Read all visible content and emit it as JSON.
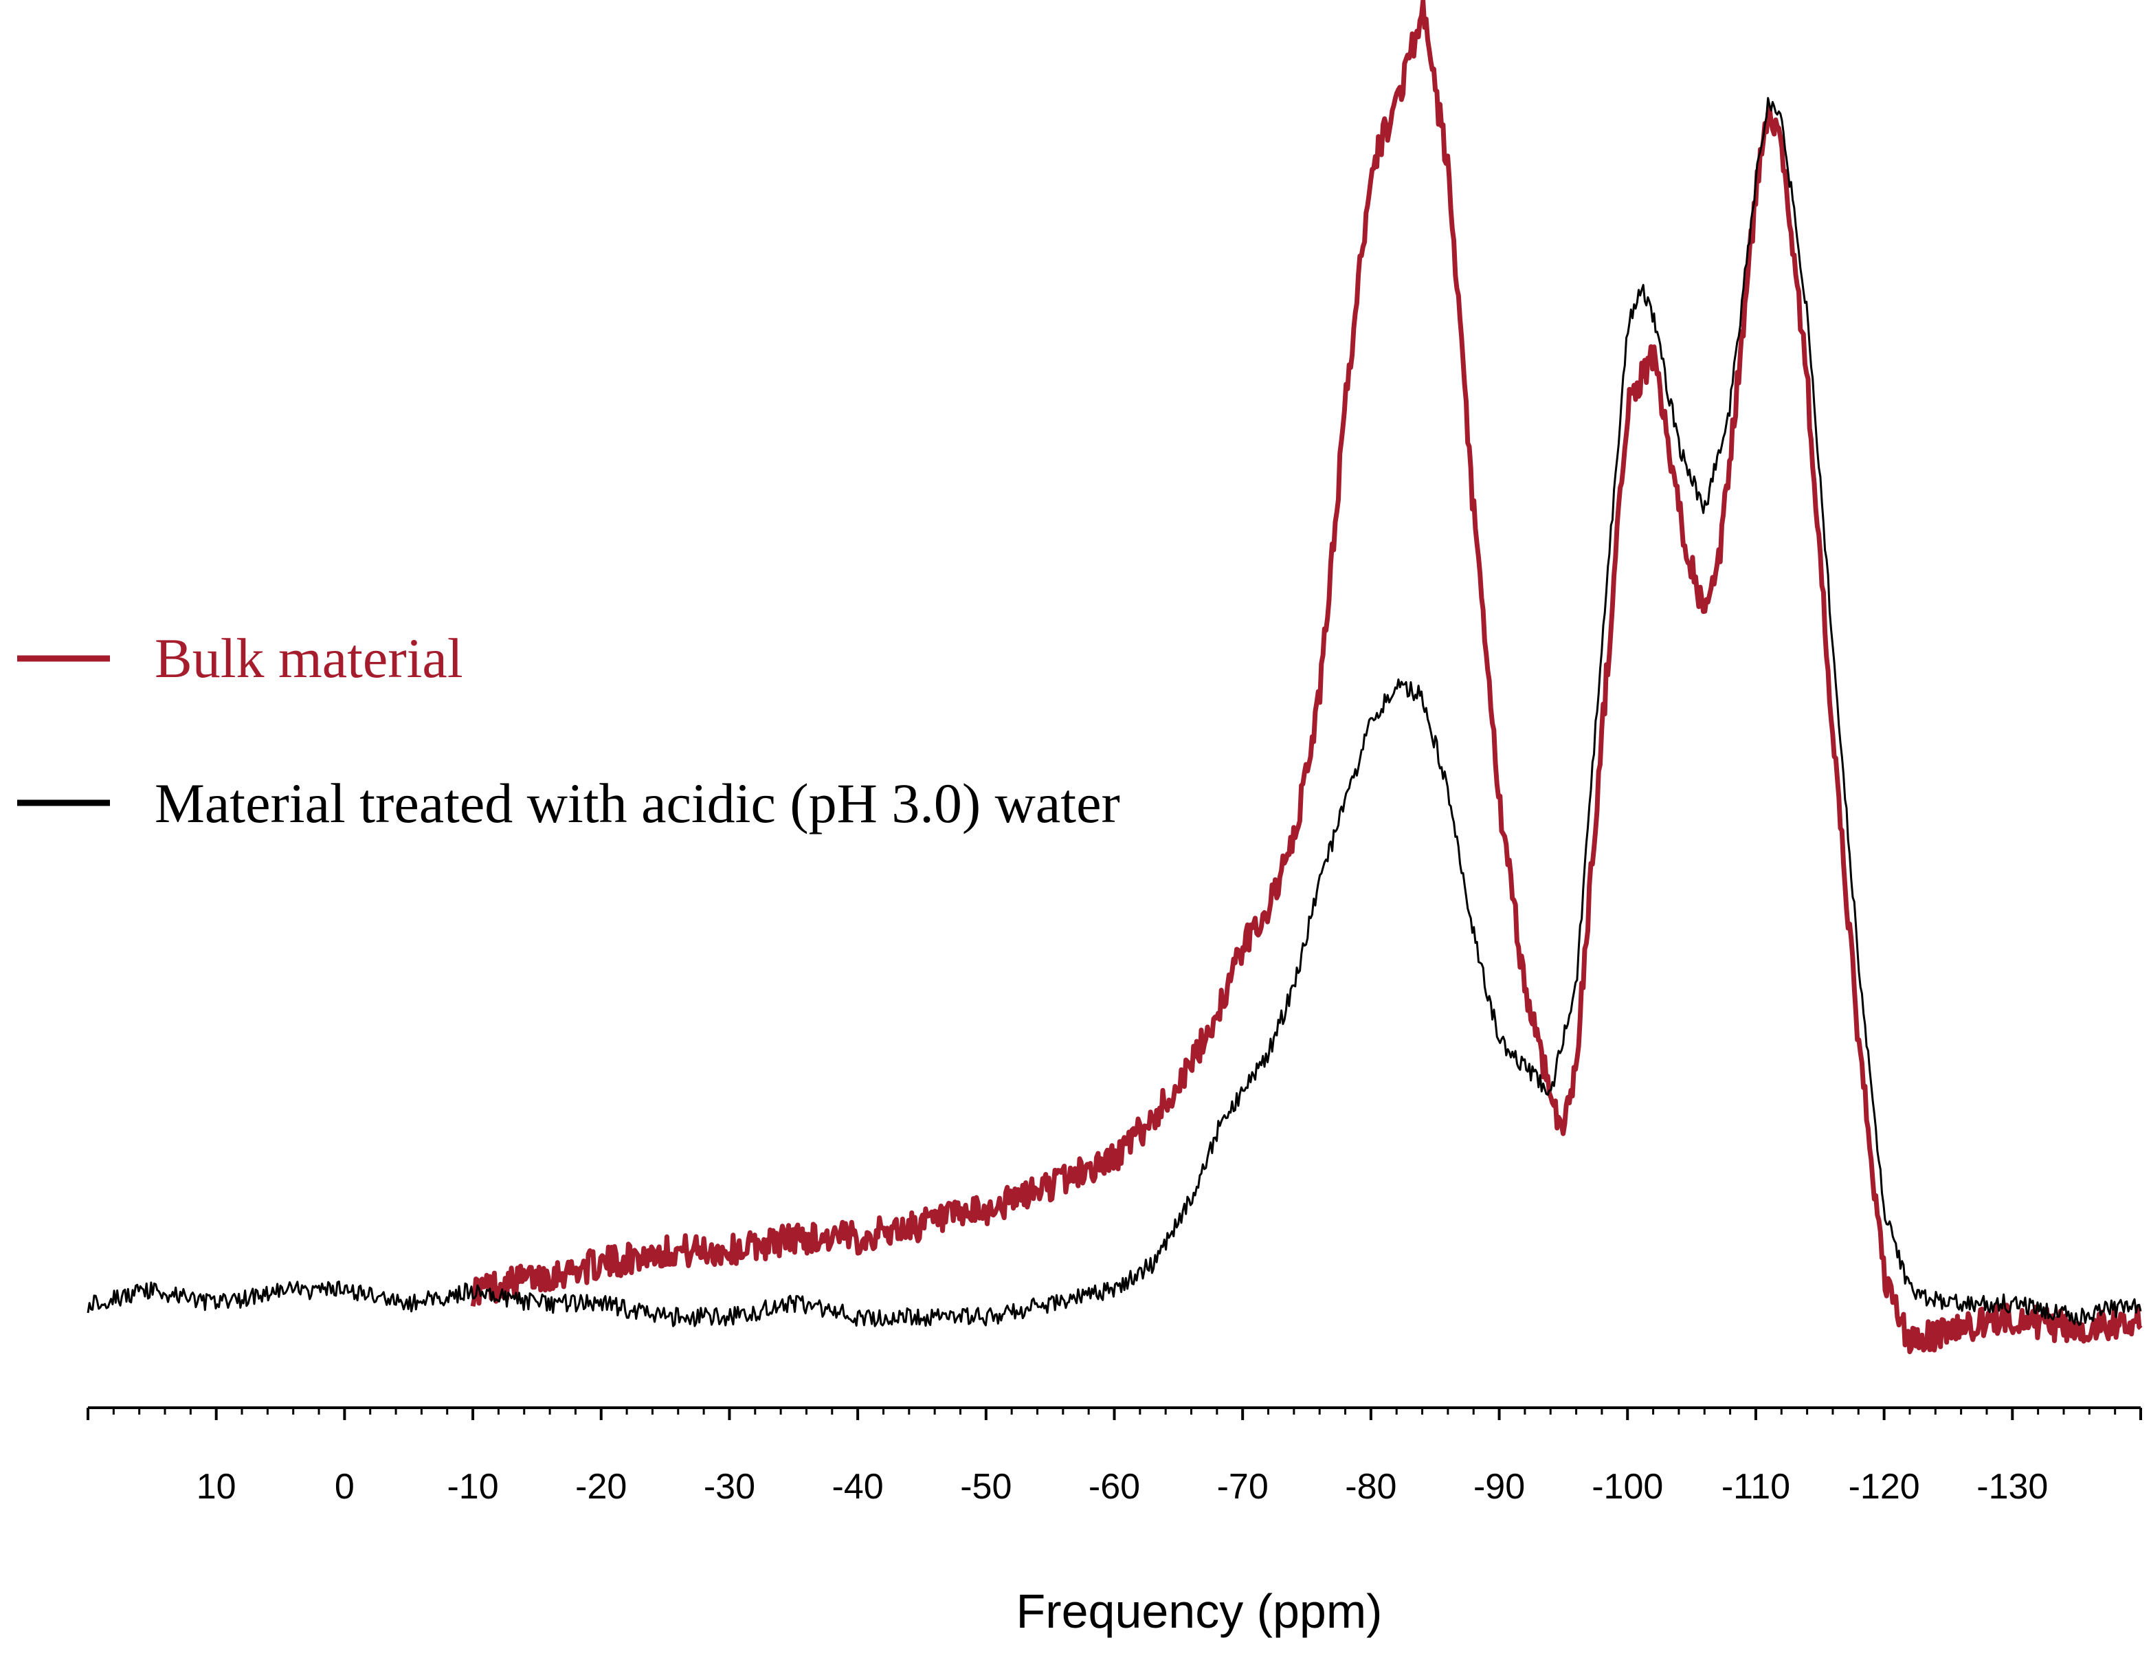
{
  "chart_data": {
    "type": "line",
    "title": "",
    "xlabel": "Frequency (ppm)",
    "ylabel": "",
    "x_reversed": true,
    "xlim": [
      20,
      -140
    ],
    "ylim": [
      0,
      1.0
    ],
    "x_ticks": [
      10,
      0,
      -10,
      -20,
      -30,
      -40,
      -50,
      -60,
      -70,
      -80,
      -90,
      -100,
      -110,
      -120,
      -130
    ],
    "grid": false,
    "legend_position": "left-middle",
    "series": [
      {
        "name": "Bulk material",
        "color": "#a51d2d",
        "x": [
          -10,
          -15,
          -20,
          -25,
          -30,
          -35,
          -40,
          -45,
          -50,
          -55,
          -60,
          -63,
          -66,
          -68,
          -70,
          -72,
          -74,
          -76,
          -78,
          -80,
          -82,
          -84,
          -86,
          -88,
          -90,
          -92,
          -94,
          -95,
          -96,
          -98,
          -100,
          -102,
          -104,
          -106,
          -107,
          -108,
          -110,
          -111,
          -112,
          -114,
          -116,
          -118,
          -120,
          -122,
          -125,
          -130,
          -135,
          -140
        ],
        "y": [
          0.03,
          0.04,
          0.05,
          0.06,
          0.06,
          0.07,
          0.07,
          0.08,
          0.09,
          0.11,
          0.13,
          0.16,
          0.2,
          0.24,
          0.29,
          0.32,
          0.37,
          0.48,
          0.7,
          0.88,
          0.93,
          1.0,
          0.88,
          0.62,
          0.4,
          0.26,
          0.18,
          0.15,
          0.2,
          0.45,
          0.7,
          0.74,
          0.62,
          0.54,
          0.57,
          0.66,
          0.86,
          0.93,
          0.9,
          0.72,
          0.45,
          0.22,
          0.04,
          -0.01,
          0.0,
          0.01,
          0.0,
          0.01
        ]
      },
      {
        "name": "Material treated with acidic (pH 3.0) water",
        "color": "#000000",
        "x": [
          20,
          15,
          10,
          5,
          0,
          -5,
          -10,
          -15,
          -20,
          -25,
          -30,
          -35,
          -40,
          -45,
          -50,
          -55,
          -60,
          -63,
          -66,
          -68,
          -70,
          -72,
          -74,
          -76,
          -78,
          -80,
          -82,
          -84,
          -86,
          -88,
          -90,
          -92,
          -94,
          -96,
          -98,
          -100,
          -101,
          -102,
          -104,
          -106,
          -108,
          -110,
          -111,
          -112,
          -114,
          -116,
          -118,
          -120,
          -122,
          -125,
          -130,
          -135,
          -140
        ],
        "y": [
          0.02,
          0.03,
          0.02,
          0.03,
          0.03,
          0.02,
          0.03,
          0.02,
          0.02,
          0.01,
          0.01,
          0.02,
          0.01,
          0.01,
          0.01,
          0.02,
          0.03,
          0.05,
          0.1,
          0.15,
          0.18,
          0.21,
          0.26,
          0.34,
          0.4,
          0.46,
          0.49,
          0.48,
          0.41,
          0.3,
          0.22,
          0.2,
          0.18,
          0.26,
          0.52,
          0.76,
          0.79,
          0.77,
          0.67,
          0.62,
          0.7,
          0.87,
          0.93,
          0.92,
          0.77,
          0.52,
          0.28,
          0.09,
          0.03,
          0.02,
          0.02,
          0.01,
          0.02
        ]
      }
    ]
  }
}
